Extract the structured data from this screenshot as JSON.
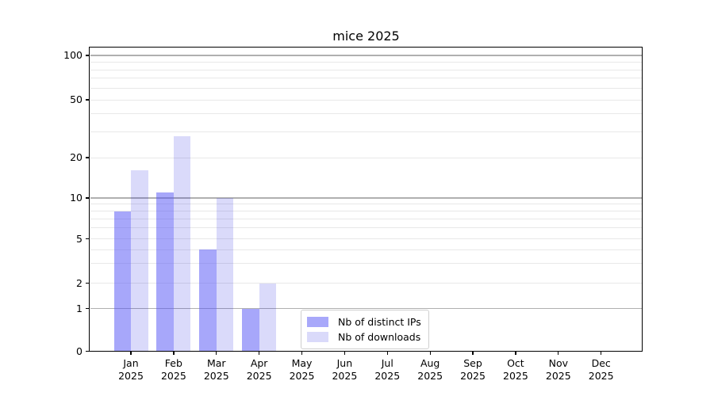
{
  "title": "mice 2025",
  "legend": {
    "items": [
      {
        "label": "Nb of distinct IPs"
      },
      {
        "label": "Nb of downloads"
      }
    ]
  },
  "chart_data": {
    "type": "bar",
    "title": "mice 2025",
    "categories": [
      "Jan",
      "Feb",
      "Mar",
      "Apr",
      "May",
      "Jun",
      "Jul",
      "Aug",
      "Sep",
      "Oct",
      "Nov",
      "Dec"
    ],
    "category_year": "2025",
    "series": [
      {
        "name": "Nb of distinct IPs",
        "color": "#a8a8fa",
        "fill": "rgba(80,80,245,0.50)",
        "values": [
          8,
          11,
          4,
          1,
          0,
          0,
          0,
          0,
          0,
          0,
          0,
          0
        ]
      },
      {
        "name": "Nb of downloads",
        "color": "#dadafa",
        "fill": "rgba(8,8,222,0.15)",
        "values": [
          16,
          28,
          10,
          2,
          0,
          0,
          0,
          0,
          0,
          0,
          0,
          0
        ]
      }
    ],
    "y_axis": {
      "scale": "log",
      "ylim": [
        0,
        100
      ],
      "tick_labels": [
        0,
        1,
        2,
        5,
        10,
        20,
        50,
        100
      ],
      "major_gridlines": [
        1,
        10,
        100
      ],
      "minor_gridlines": [
        2,
        3,
        4,
        5,
        6,
        7,
        8,
        9,
        20,
        30,
        40,
        50,
        60,
        70,
        80,
        90
      ],
      "major_grid_color": "#b0b0b0",
      "minor_grid_color": "#e8e8e8"
    },
    "xlabel": "",
    "ylabel": "",
    "grid": true,
    "legend_position": "lower center"
  }
}
